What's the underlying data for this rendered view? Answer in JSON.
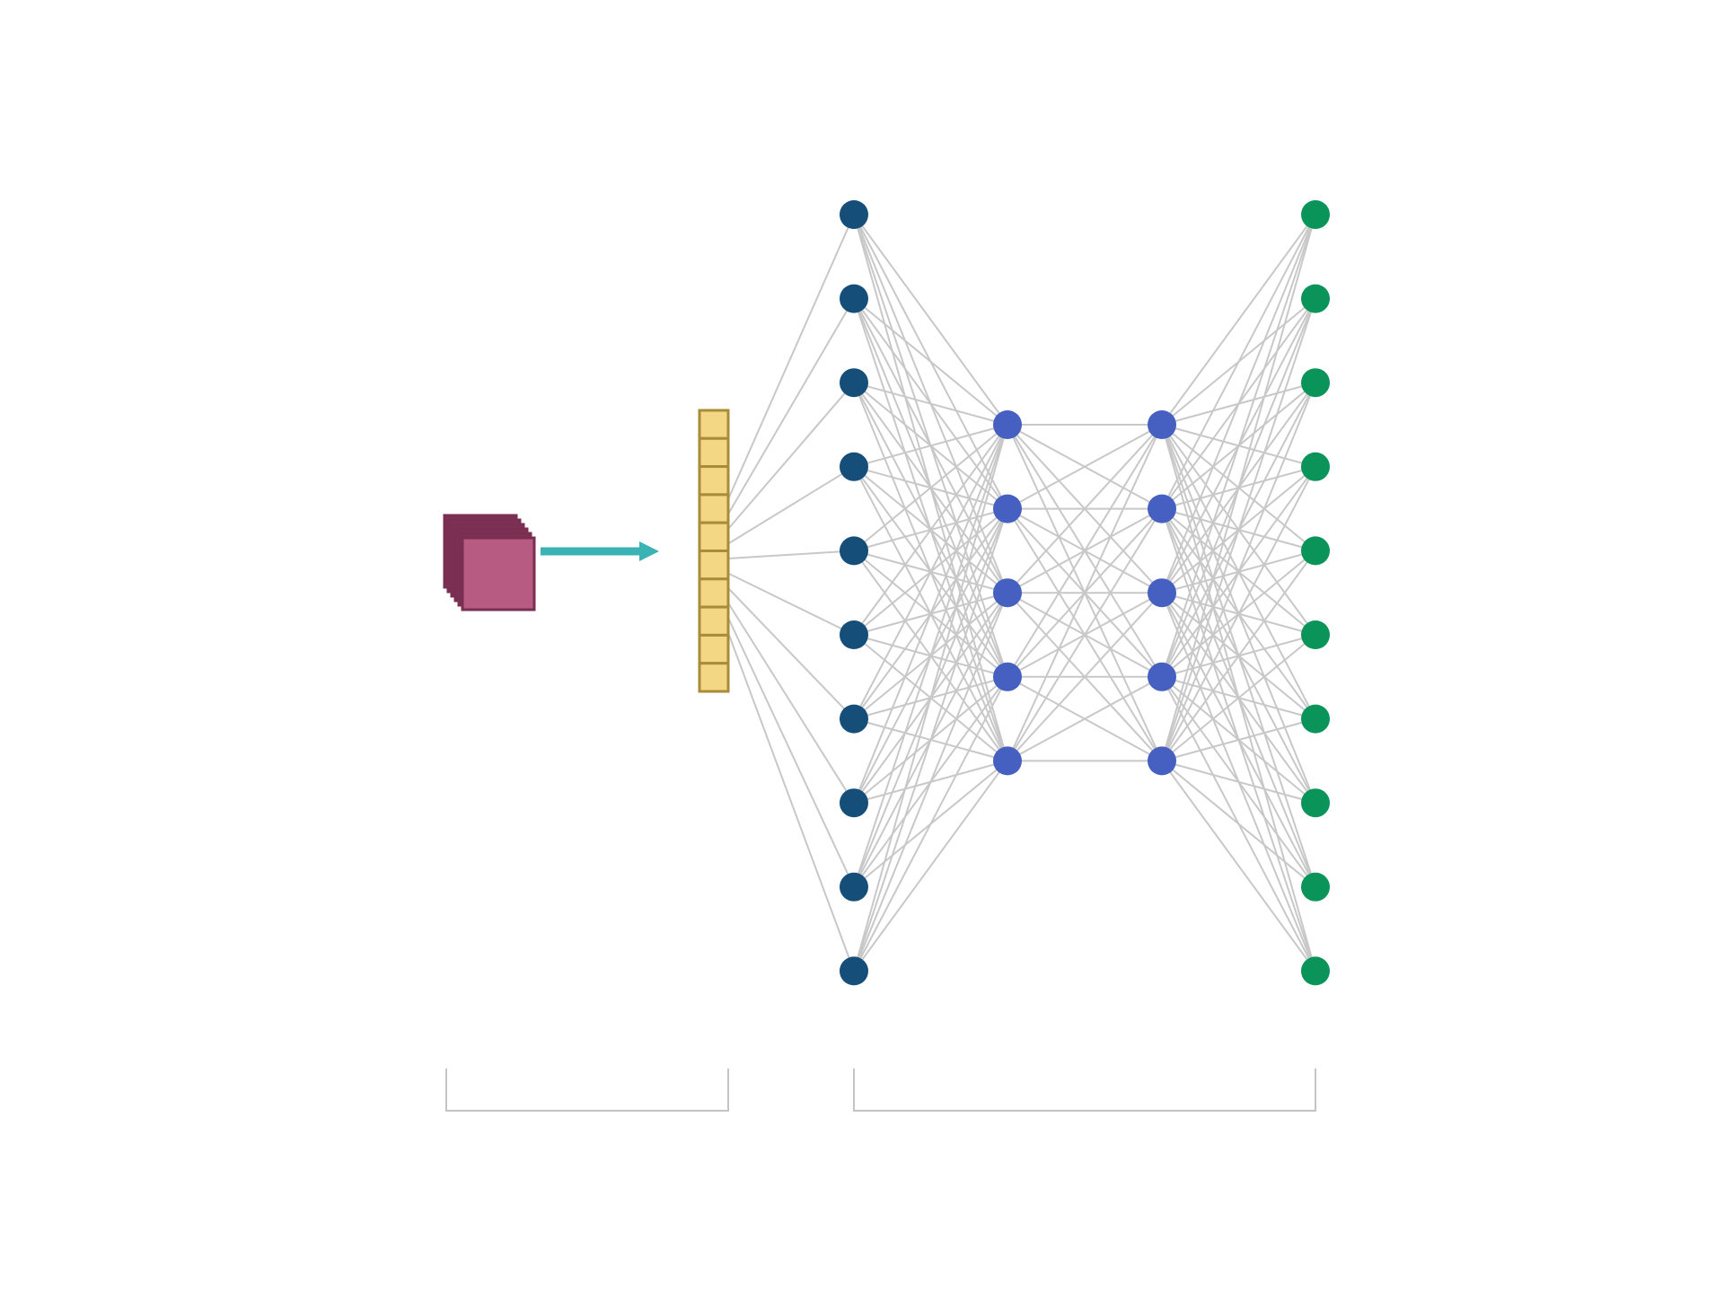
{
  "diagram": {
    "colors": {
      "background": "#ffffff",
      "edge": "#c8c8c8",
      "bracket": "#c4c4c4",
      "feature_map_front": "#b85b82",
      "feature_map_back": "#7b3253",
      "feature_map_border": "#7a2f52",
      "arrow": "#3bb3b5",
      "flatten_fill": "#f3d785",
      "flatten_border": "#a88c3a",
      "input_layer": "#164e7a",
      "hidden_layer": "#4560c0",
      "output_layer": "#0a9459"
    },
    "icons": {
      "feature_maps": "stacked-feature-maps-icon",
      "arrow": "right-arrow-icon"
    },
    "feature_map_stack_count": 6,
    "flatten_cells": 10,
    "layers": [
      {
        "name": "input-layer",
        "neurons": 10,
        "color_key": "input_layer"
      },
      {
        "name": "hidden-layer-1",
        "neurons": 5,
        "color_key": "hidden_layer"
      },
      {
        "name": "hidden-layer-2",
        "neurons": 5,
        "color_key": "hidden_layer"
      },
      {
        "name": "output-layer",
        "neurons": 10,
        "color_key": "output_layer"
      }
    ],
    "brackets": [
      {
        "name": "feature-extraction-bracket",
        "label": ""
      },
      {
        "name": "classification-bracket",
        "label": ""
      }
    ]
  }
}
